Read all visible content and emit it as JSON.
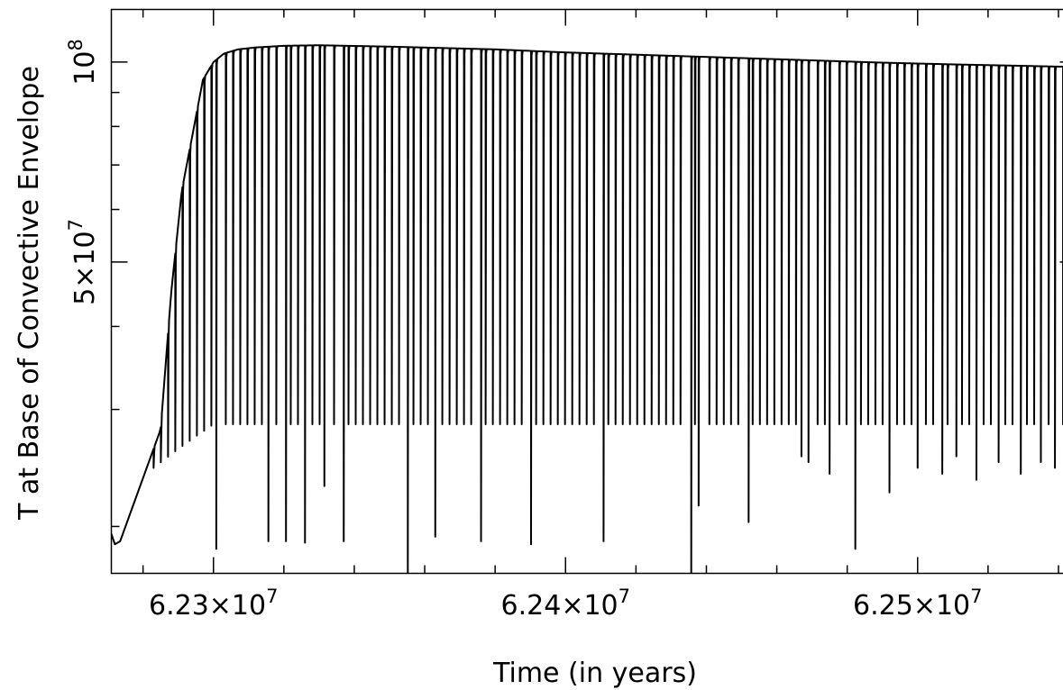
{
  "chart_data": {
    "type": "line",
    "title": "",
    "xlabel": "Time (in years)",
    "ylabel": "T at Base of Convective Envelope",
    "xlim": [
      62271000,
      62545000
    ],
    "ylim": [
      17000000,
      120000000
    ],
    "y_scale": "log",
    "grid": false,
    "x_ticks": [
      {
        "value": 62300000,
        "mant": "6.23",
        "exp": "7"
      },
      {
        "value": 62400000,
        "mant": "6.24",
        "exp": "7"
      },
      {
        "value": 62500000,
        "mant": "6.25",
        "exp": "7"
      }
    ],
    "y_ticks": [
      {
        "value": 50000000,
        "mant": "5",
        "exp": "7"
      },
      {
        "value": 100000000,
        "mant": "",
        "exp": "8"
      }
    ],
    "series": [
      {
        "envelope": {
          "x": [
            62271000,
            62272000,
            62273500,
            62285000,
            62288000,
            62291000,
            62294500,
            62297000,
            62300000,
            62303000,
            62307000,
            62312000,
            62320000,
            62330000,
            62350000,
            62380000,
            62400000,
            62430000,
            62460000,
            62490000,
            62510000,
            62530000,
            62545000
          ],
          "y": [
            19500000,
            18800000,
            19000000,
            28000000,
            45000000,
            64000000,
            80000000,
            94000000,
            100000000,
            103000000,
            104500000,
            105200000,
            105800000,
            106000000,
            105500000,
            104500000,
            103400000,
            102200000,
            101000000,
            99800000,
            99200000,
            98700000,
            98300000
          ]
        },
        "pulse_spacing_years": 2050,
        "first_pulse_x": 62283000,
        "pulse_floor_late": 28500000,
        "pulse_floor_early": 24500000,
        "deep_pulses": [
          {
            "x": 62300800,
            "y": 18500000
          },
          {
            "x": 62315600,
            "y": 19000000
          },
          {
            "x": 62320600,
            "y": 19000000
          },
          {
            "x": 62326000,
            "y": 18900000
          },
          {
            "x": 62331500,
            "y": 23000000
          },
          {
            "x": 62337000,
            "y": 19000000
          },
          {
            "x": 62355200,
            "y": 17000000
          },
          {
            "x": 62363000,
            "y": 19300000
          },
          {
            "x": 62376000,
            "y": 19000000
          },
          {
            "x": 62390200,
            "y": 18800000
          },
          {
            "x": 62410800,
            "y": 19000000
          },
          {
            "x": 62435700,
            "y": 17000000
          },
          {
            "x": 62437800,
            "y": 21500000
          },
          {
            "x": 62452000,
            "y": 20300000
          },
          {
            "x": 62467000,
            "y": 25500000
          },
          {
            "x": 62469000,
            "y": 25000000
          },
          {
            "x": 62475000,
            "y": 24000000
          },
          {
            "x": 62482300,
            "y": 18500000
          },
          {
            "x": 62492000,
            "y": 22500000
          },
          {
            "x": 62500000,
            "y": 24500000
          },
          {
            "x": 62507000,
            "y": 24000000
          },
          {
            "x": 62511000,
            "y": 25500000
          },
          {
            "x": 62516700,
            "y": 23500000
          },
          {
            "x": 62523000,
            "y": 25000000
          },
          {
            "x": 62529300,
            "y": 24000000
          },
          {
            "x": 62535000,
            "y": 25000000
          },
          {
            "x": 62539000,
            "y": 24500000
          }
        ]
      }
    ]
  }
}
